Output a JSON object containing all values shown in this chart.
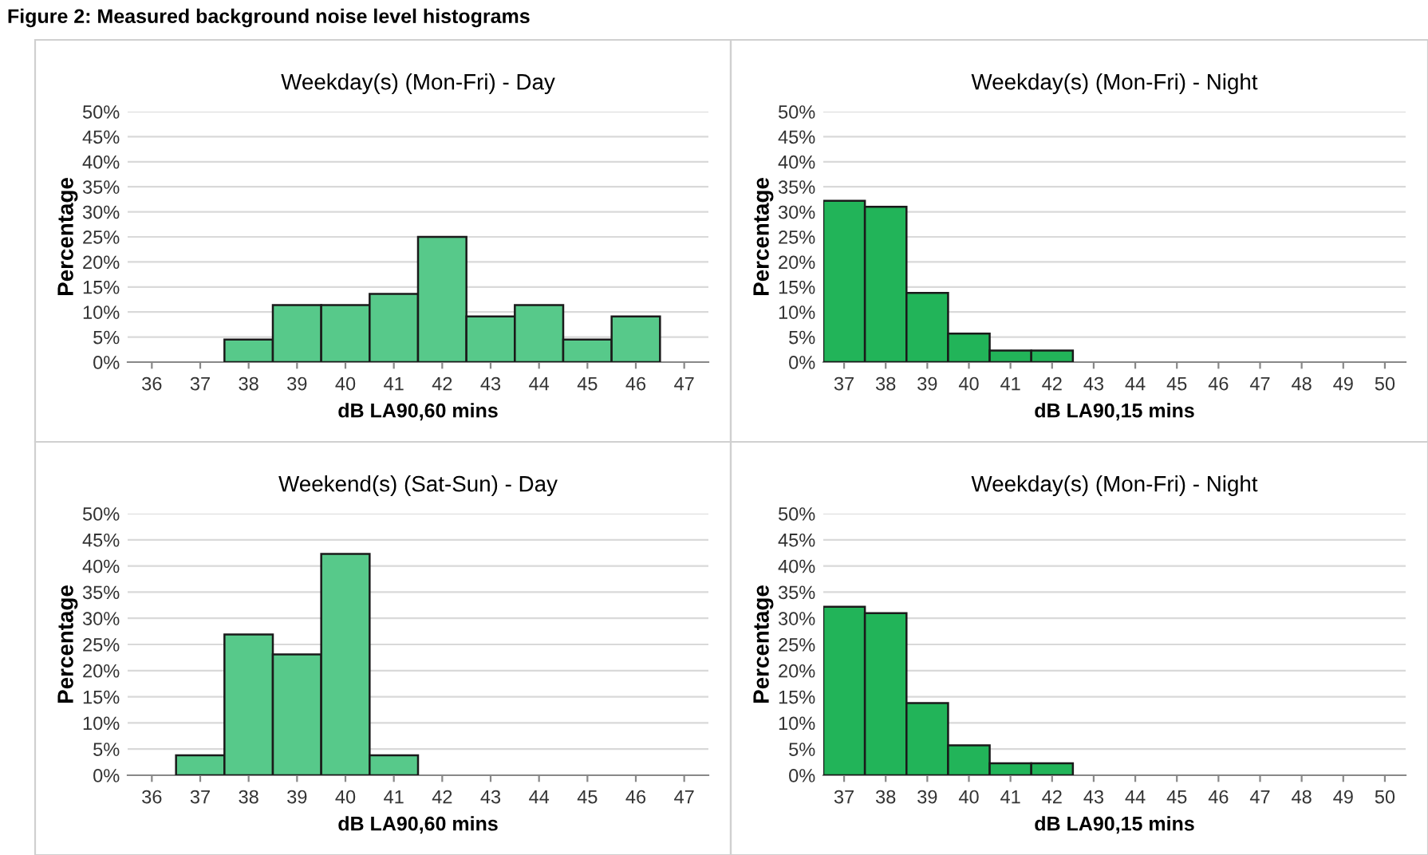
{
  "chart_data": [
    {
      "type": "bar",
      "title": "Weekday(s) (Mon-Fri) - Day",
      "xlabel": "dB LA90,60 mins",
      "ylabel": "Percentage",
      "annotations": [
        "Figure 2: Measured background noise level histograms"
      ],
      "categories": [
        "36",
        "37",
        "38",
        "39",
        "40",
        "41",
        "42",
        "43",
        "44",
        "45",
        "46",
        "47"
      ],
      "values": [
        0,
        0,
        4.5,
        11.4,
        11.4,
        13.6,
        25,
        9.1,
        11.4,
        4.5,
        9.1,
        0
      ],
      "color": "#57c98a",
      "ylim": [
        0,
        50
      ],
      "yticks": [
        {
          "value": 0,
          "label": "0%"
        },
        {
          "value": 5,
          "label": "5%"
        },
        {
          "value": 10,
          "label": "10%"
        },
        {
          "value": 15,
          "label": "15%"
        },
        {
          "value": 20,
          "label": "20%"
        },
        {
          "value": 25,
          "label": "25%"
        },
        {
          "value": 30,
          "label": "30%"
        },
        {
          "value": 35,
          "label": "35%"
        },
        {
          "value": 40,
          "label": "40%"
        },
        {
          "value": 45,
          "label": "45%"
        },
        {
          "value": 50,
          "label": "50%"
        }
      ],
      "grid": "y"
    },
    {
      "type": "bar",
      "title": "Weekday(s) (Mon-Fri) - Night",
      "xlabel": "dB LA90,15 mins",
      "ylabel": "Percentage",
      "categories": [
        "37",
        "38",
        "39",
        "40",
        "41",
        "42",
        "43",
        "44",
        "45",
        "46",
        "47",
        "48",
        "49",
        "50"
      ],
      "values": [
        32.2,
        31,
        13.8,
        5.7,
        2.3,
        2.3,
        0,
        0,
        0,
        0,
        0,
        0,
        0,
        0
      ],
      "color": "#22b459",
      "ylim": [
        0,
        50
      ],
      "yticks": [
        {
          "value": 0,
          "label": "0%"
        },
        {
          "value": 5,
          "label": "5%"
        },
        {
          "value": 10,
          "label": "10%"
        },
        {
          "value": 15,
          "label": "15%"
        },
        {
          "value": 20,
          "label": "20%"
        },
        {
          "value": 25,
          "label": "25%"
        },
        {
          "value": 30,
          "label": "30%"
        },
        {
          "value": 35,
          "label": "35%"
        },
        {
          "value": 40,
          "label": "40%"
        },
        {
          "value": 45,
          "label": "45%"
        },
        {
          "value": 50,
          "label": "50%"
        }
      ],
      "grid": "y"
    },
    {
      "type": "bar",
      "title": "Weekend(s) (Sat-Sun) - Day",
      "xlabel": "dB LA90,60 mins",
      "ylabel": "Percentage",
      "categories": [
        "36",
        "37",
        "38",
        "39",
        "40",
        "41",
        "42",
        "43",
        "44",
        "45",
        "46",
        "47"
      ],
      "values": [
        0,
        3.8,
        26.9,
        23.1,
        42.3,
        3.8,
        0,
        0,
        0,
        0,
        0,
        0
      ],
      "color": "#57c98a",
      "ylim": [
        0,
        50
      ],
      "yticks": [
        {
          "value": 0,
          "label": "0%"
        },
        {
          "value": 5,
          "label": "5%"
        },
        {
          "value": 10,
          "label": "10%"
        },
        {
          "value": 15,
          "label": "15%"
        },
        {
          "value": 20,
          "label": "20%"
        },
        {
          "value": 25,
          "label": "25%"
        },
        {
          "value": 30,
          "label": "30%"
        },
        {
          "value": 35,
          "label": "35%"
        },
        {
          "value": 40,
          "label": "40%"
        },
        {
          "value": 45,
          "label": "45%"
        },
        {
          "value": 50,
          "label": "50%"
        }
      ],
      "grid": "y"
    },
    {
      "type": "bar",
      "title": "Weekday(s) (Mon-Fri) - Night",
      "xlabel": "dB LA90,15 mins",
      "ylabel": "Percentage",
      "categories": [
        "37",
        "38",
        "39",
        "40",
        "41",
        "42",
        "43",
        "44",
        "45",
        "46",
        "47",
        "48",
        "49",
        "50"
      ],
      "values": [
        32.2,
        31,
        13.8,
        5.7,
        2.3,
        2.3,
        0,
        0,
        0,
        0,
        0,
        0,
        0,
        0
      ],
      "color": "#22b459",
      "ylim": [
        0,
        50
      ],
      "yticks": [
        {
          "value": 0,
          "label": "0%"
        },
        {
          "value": 5,
          "label": "5%"
        },
        {
          "value": 10,
          "label": "10%"
        },
        {
          "value": 15,
          "label": "15%"
        },
        {
          "value": 20,
          "label": "20%"
        },
        {
          "value": 25,
          "label": "25%"
        },
        {
          "value": 30,
          "label": "30%"
        },
        {
          "value": 35,
          "label": "35%"
        },
        {
          "value": 40,
          "label": "40%"
        },
        {
          "value": 45,
          "label": "45%"
        },
        {
          "value": 50,
          "label": "50%"
        }
      ],
      "grid": "y"
    }
  ]
}
